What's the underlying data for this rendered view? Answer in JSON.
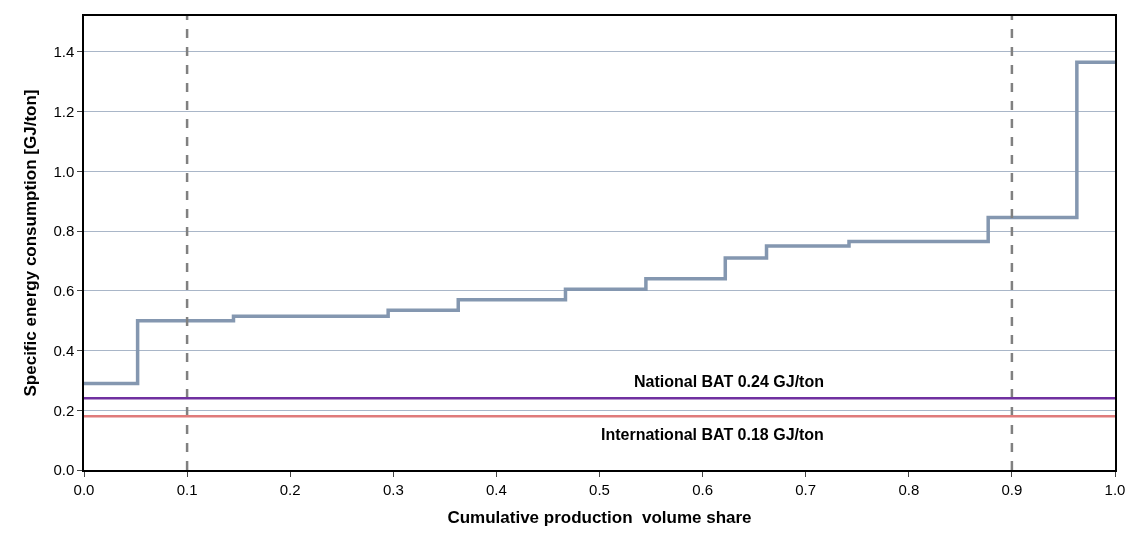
{
  "chart_data": {
    "type": "step",
    "xlabel": "Cumulative production  volume share",
    "ylabel": "Specific energy consumption [GJ/ton]",
    "x": [
      0,
      0.052,
      0.145,
      0.295,
      0.363,
      0.467,
      0.545,
      0.622,
      0.662,
      0.742,
      0.877,
      0.963,
      1.0
    ],
    "series": [
      {
        "color": "#8497b0",
        "values": [
          0.29,
          0.5,
          0.515,
          0.535,
          0.57,
          0.605,
          0.64,
          0.71,
          0.75,
          0.765,
          0.845,
          1.365,
          1.365
        ]
      }
    ],
    "ref_lines": [
      {
        "axis": "x",
        "value": 0.1,
        "color": "#808080",
        "line_style": "dashed"
      },
      {
        "axis": "x",
        "value": 0.9,
        "color": "#808080",
        "line_style": "dashed"
      },
      {
        "axis": "y",
        "value": 0.24,
        "label": "National BAT 0.24 GJ/ton",
        "color": "#7030a0"
      },
      {
        "axis": "y",
        "value": 0.18,
        "label": "International BAT 0.18 GJ/ton",
        "color": "#e07b7b"
      }
    ],
    "xlim": [
      0,
      1.0
    ],
    "xticks": [
      {
        "value": 0,
        "label": "0.0"
      },
      0.1,
      0.2,
      0.3,
      0.4,
      0.5,
      0.6,
      0.7,
      0.8,
      0.9,
      {
        "value": 1,
        "label": "1.0"
      }
    ],
    "ylim": [
      0,
      1.52
    ],
    "yticks": [
      {
        "value": 0,
        "label": "0.0"
      },
      0.2,
      0.4,
      0.6,
      0.8,
      {
        "value": 1,
        "label": "1.0"
      },
      1.2,
      1.4
    ],
    "grid": "y",
    "marker": "none",
    "line_style": "solid"
  }
}
